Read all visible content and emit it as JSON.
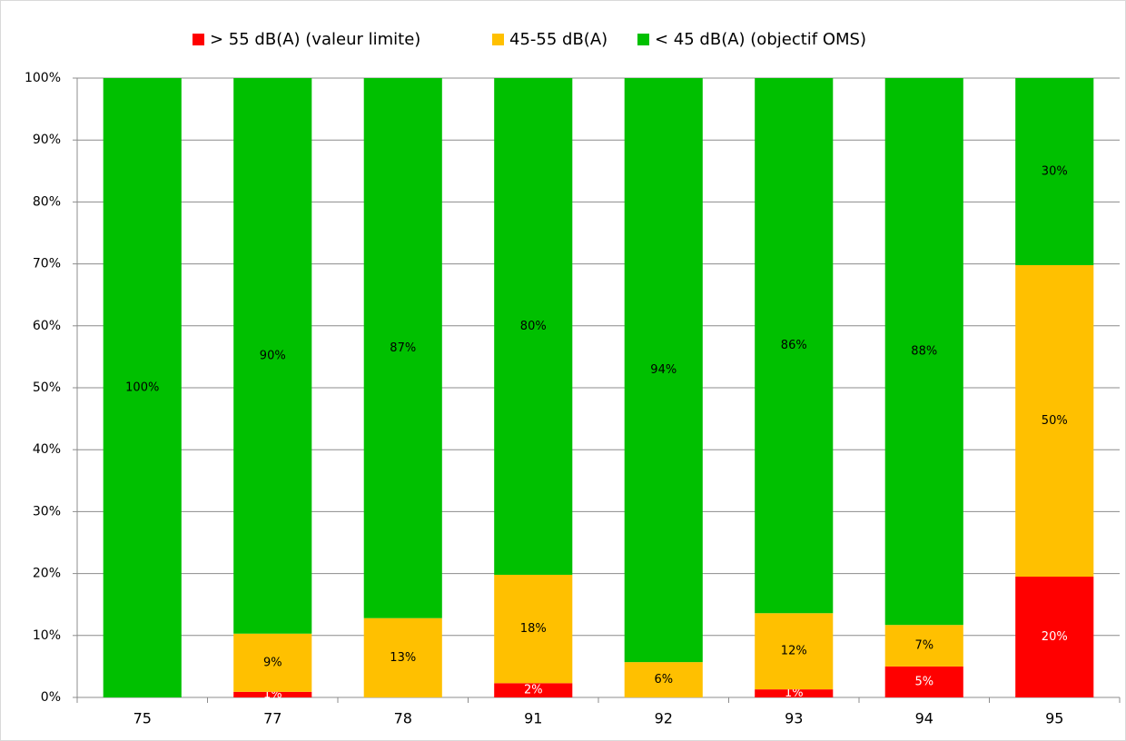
{
  "chart_data": {
    "type": "stacked_bar",
    "categories": [
      "75",
      "77",
      "78",
      "91",
      "92",
      "93",
      "94",
      "95"
    ],
    "series": [
      {
        "name": "> 55 dB(A) (valeur limite)",
        "color": "#ff0000",
        "label_color": "#ffffff",
        "values": [
          0,
          0.9,
          0,
          2.3,
          0,
          1.3,
          5.0,
          19.5
        ],
        "value_labels": [
          null,
          "1%",
          null,
          "2%",
          null,
          "1%",
          "5%",
          "20%"
        ]
      },
      {
        "name": "45-55 dB(A)",
        "color": "#ffc000",
        "label_color": "#000000",
        "values": [
          0,
          9.4,
          12.8,
          17.5,
          5.7,
          12.3,
          6.7,
          50.3
        ],
        "value_labels": [
          null,
          "9%",
          "13%",
          "18%",
          "6%",
          "12%",
          "7%",
          "50%"
        ]
      },
      {
        "name": "< 45 dB(A) (objectif OMS)",
        "color": "#00c000",
        "label_color": "#000000",
        "values": [
          100,
          89.7,
          87.2,
          80.2,
          94.3,
          86.4,
          88.3,
          30.2
        ],
        "value_labels": [
          "100%",
          "90%",
          "87%",
          "80%",
          "94%",
          "86%",
          "88%",
          "30%"
        ]
      }
    ],
    "ylim": [
      0,
      100
    ],
    "yticks": [
      {
        "value": 0,
        "label": "0%"
      },
      {
        "value": 10,
        "label": "10%"
      },
      {
        "value": 20,
        "label": "20%"
      },
      {
        "value": 30,
        "label": "30%"
      },
      {
        "value": 40,
        "label": "40%"
      },
      {
        "value": 50,
        "label": "50%"
      },
      {
        "value": 60,
        "label": "60%"
      },
      {
        "value": 70,
        "label": "70%"
      },
      {
        "value": 80,
        "label": "80%"
      },
      {
        "value": 90,
        "label": "90%"
      },
      {
        "value": 100,
        "label": "100%"
      }
    ],
    "grid": true,
    "legend": "top"
  }
}
